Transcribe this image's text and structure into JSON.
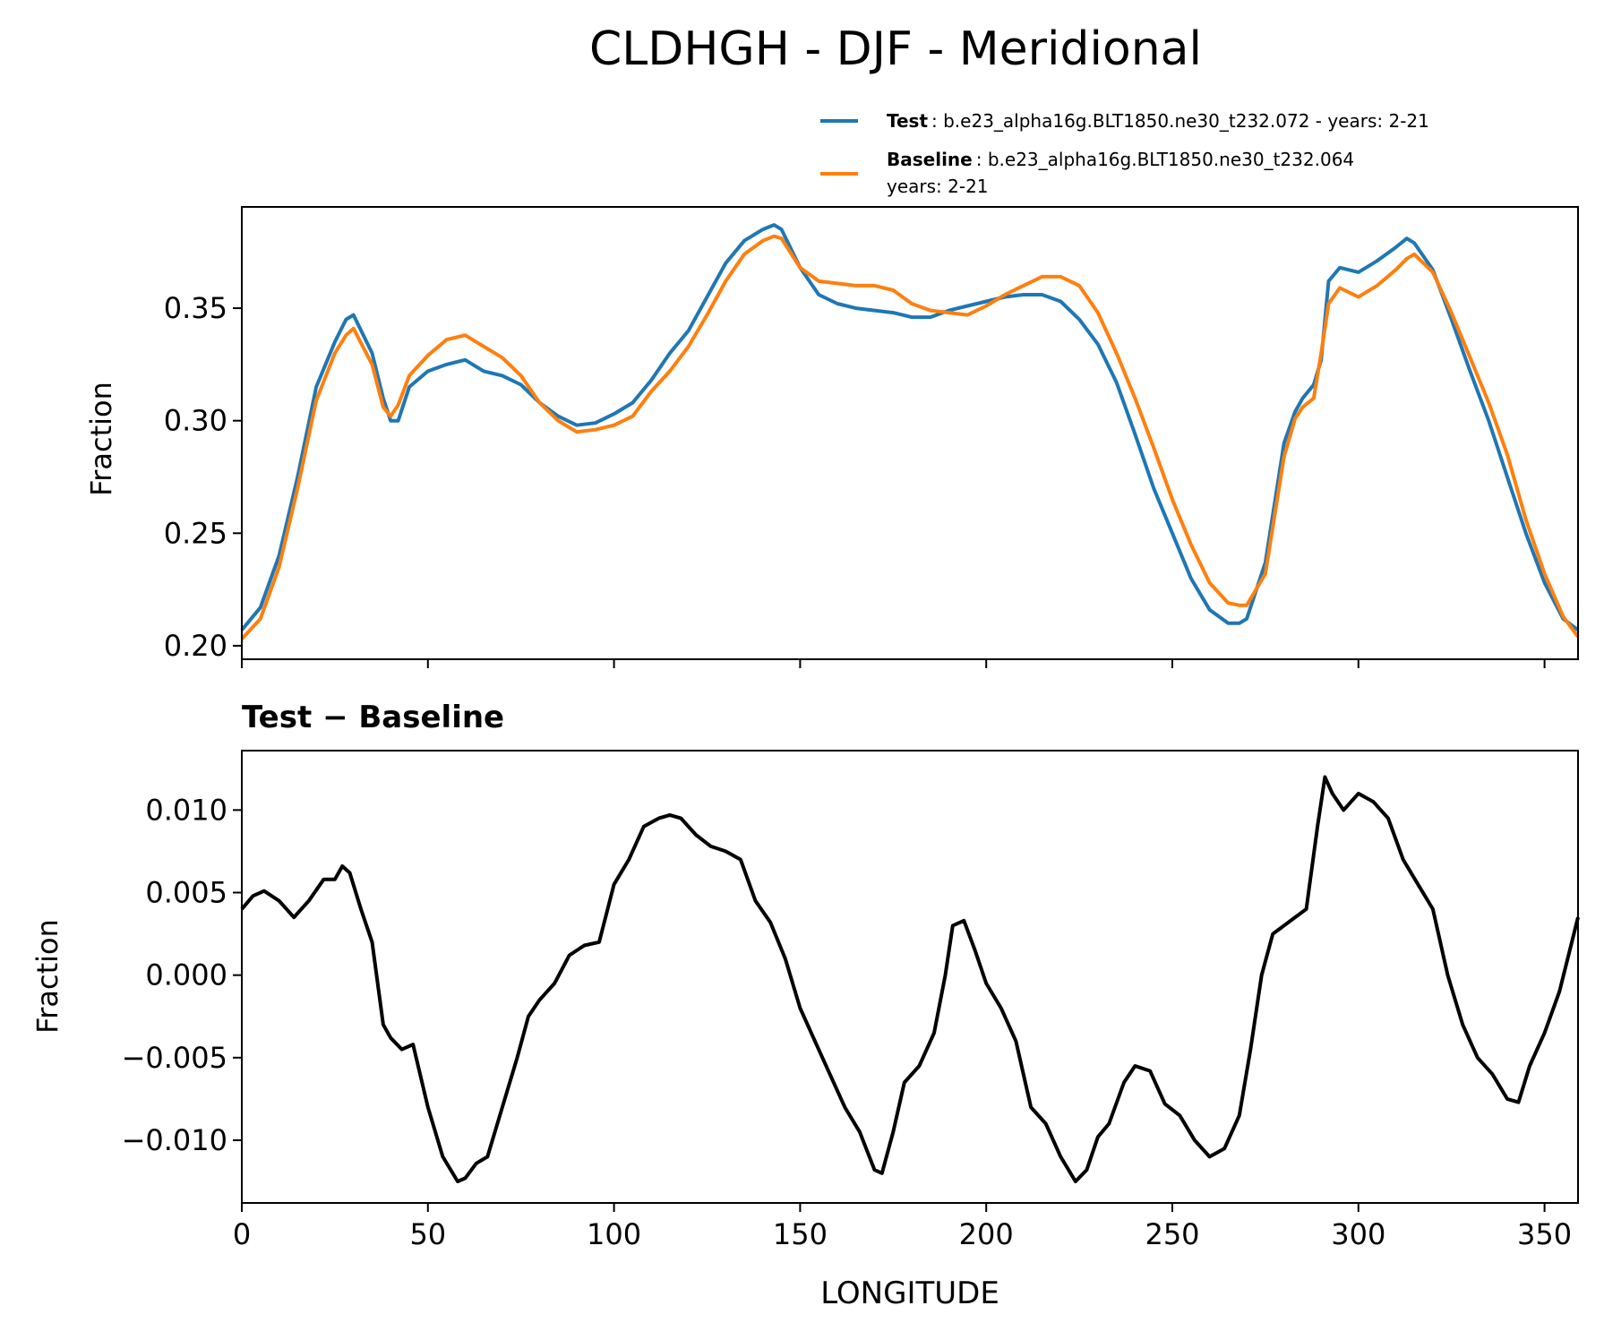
{
  "figure_title": "CLDHGH - DJF - Meridional",
  "legend": {
    "test_label": "Test",
    "test_text": ": b.e23_alpha16g.BLT1850.ne30_t232.072 - years: 2-21",
    "baseline_label": "Baseline",
    "baseline_text_line1": ": b.e23_alpha16g.BLT1850.ne30_t232.064",
    "baseline_text_line2": "years: 2-21"
  },
  "colors": {
    "test": "#1f77b4",
    "baseline": "#ff7f0e",
    "diff": "#000000"
  },
  "chart_data": [
    {
      "type": "line",
      "panel": "top",
      "ylabel": "Fraction",
      "xlim": [
        0,
        359
      ],
      "ylim": [
        0.194,
        0.395
      ],
      "xticks": [
        0,
        50,
        100,
        150,
        200,
        250,
        300,
        350
      ],
      "yticks": [
        0.2,
        0.25,
        0.3,
        0.35
      ],
      "ytick_labels": [
        "0.20",
        "0.25",
        "0.30",
        "0.35"
      ],
      "series": [
        {
          "name": "Test",
          "x": [
            0,
            5,
            10,
            15,
            20,
            25,
            28,
            30,
            35,
            38,
            40,
            42,
            45,
            50,
            55,
            60,
            65,
            70,
            75,
            80,
            85,
            90,
            95,
            100,
            105,
            110,
            115,
            120,
            125,
            130,
            135,
            140,
            143,
            145,
            150,
            155,
            160,
            165,
            170,
            175,
            180,
            185,
            190,
            195,
            200,
            205,
            210,
            215,
            220,
            225,
            230,
            235,
            240,
            245,
            250,
            255,
            260,
            265,
            268,
            270,
            275,
            280,
            283,
            285,
            288,
            290,
            292,
            295,
            300,
            305,
            310,
            313,
            315,
            320,
            325,
            330,
            335,
            340,
            345,
            350,
            355,
            359
          ],
          "values": [
            0.207,
            0.217,
            0.24,
            0.275,
            0.315,
            0.335,
            0.345,
            0.347,
            0.33,
            0.31,
            0.3,
            0.3,
            0.315,
            0.322,
            0.325,
            0.327,
            0.322,
            0.32,
            0.316,
            0.308,
            0.302,
            0.298,
            0.299,
            0.303,
            0.308,
            0.318,
            0.33,
            0.34,
            0.355,
            0.37,
            0.38,
            0.385,
            0.387,
            0.385,
            0.368,
            0.356,
            0.352,
            0.35,
            0.349,
            0.348,
            0.346,
            0.346,
            0.349,
            0.351,
            0.353,
            0.355,
            0.356,
            0.356,
            0.353,
            0.345,
            0.334,
            0.317,
            0.294,
            0.27,
            0.25,
            0.23,
            0.216,
            0.21,
            0.21,
            0.212,
            0.237,
            0.29,
            0.304,
            0.31,
            0.316,
            0.327,
            0.362,
            0.368,
            0.366,
            0.371,
            0.377,
            0.381,
            0.379,
            0.367,
            0.345,
            0.322,
            0.3,
            0.275,
            0.25,
            0.228,
            0.212,
            0.207
          ]
        },
        {
          "name": "Baseline",
          "x": [
            0,
            5,
            10,
            15,
            20,
            25,
            28,
            30,
            35,
            38,
            40,
            42,
            45,
            50,
            55,
            60,
            65,
            70,
            75,
            80,
            85,
            90,
            95,
            100,
            105,
            110,
            115,
            120,
            125,
            130,
            135,
            140,
            143,
            145,
            150,
            155,
            160,
            165,
            170,
            175,
            180,
            185,
            190,
            195,
            200,
            205,
            210,
            215,
            220,
            225,
            230,
            235,
            240,
            245,
            250,
            255,
            260,
            265,
            268,
            270,
            275,
            280,
            283,
            285,
            288,
            290,
            292,
            295,
            300,
            305,
            310,
            313,
            315,
            320,
            325,
            330,
            335,
            340,
            345,
            350,
            355,
            359
          ],
          "values": [
            0.203,
            0.212,
            0.235,
            0.27,
            0.309,
            0.33,
            0.338,
            0.341,
            0.325,
            0.306,
            0.302,
            0.307,
            0.32,
            0.329,
            0.336,
            0.338,
            0.333,
            0.328,
            0.32,
            0.308,
            0.3,
            0.295,
            0.296,
            0.298,
            0.302,
            0.313,
            0.322,
            0.333,
            0.347,
            0.362,
            0.374,
            0.38,
            0.382,
            0.381,
            0.368,
            0.362,
            0.361,
            0.36,
            0.36,
            0.358,
            0.352,
            0.349,
            0.348,
            0.347,
            0.351,
            0.356,
            0.36,
            0.364,
            0.364,
            0.36,
            0.348,
            0.33,
            0.31,
            0.288,
            0.265,
            0.245,
            0.228,
            0.219,
            0.218,
            0.218,
            0.232,
            0.284,
            0.301,
            0.306,
            0.31,
            0.33,
            0.352,
            0.359,
            0.355,
            0.36,
            0.367,
            0.372,
            0.374,
            0.366,
            0.348,
            0.328,
            0.308,
            0.285,
            0.256,
            0.232,
            0.213,
            0.204
          ]
        }
      ]
    },
    {
      "type": "line",
      "panel": "bottom",
      "title": "Test − Baseline",
      "xlabel": "LONGITUDE",
      "ylabel": "Fraction",
      "xlim": [
        0,
        359
      ],
      "ylim": [
        -0.0138,
        0.0136
      ],
      "xticks": [
        0,
        50,
        100,
        150,
        200,
        250,
        300,
        350
      ],
      "xtick_labels": [
        "0",
        "50",
        "100",
        "150",
        "200",
        "250",
        "300",
        "350"
      ],
      "yticks": [
        -0.01,
        -0.005,
        0.0,
        0.005,
        0.01
      ],
      "ytick_labels": [
        "−0.010",
        "−0.005",
        "0.000",
        "0.005",
        "0.010"
      ],
      "series": [
        {
          "name": "Test − Baseline",
          "x": [
            0,
            3,
            6,
            10,
            14,
            18,
            22,
            25,
            27,
            29,
            32,
            35,
            38,
            40,
            43,
            46,
            50,
            54,
            58,
            60,
            63,
            66,
            70,
            74,
            77,
            80,
            84,
            88,
            92,
            96,
            100,
            104,
            108,
            112,
            115,
            118,
            122,
            126,
            130,
            134,
            138,
            142,
            146,
            150,
            154,
            158,
            162,
            166,
            170,
            172,
            175,
            178,
            182,
            186,
            189,
            191,
            194,
            197,
            200,
            204,
            208,
            212,
            216,
            220,
            224,
            227,
            230,
            233,
            237,
            240,
            244,
            248,
            252,
            256,
            260,
            264,
            268,
            271,
            274,
            277,
            280,
            283,
            286,
            289,
            291,
            293,
            296,
            300,
            304,
            308,
            312,
            316,
            320,
            324,
            328,
            332,
            336,
            340,
            343,
            346,
            350,
            354,
            359
          ],
          "values": [
            0.004,
            0.0048,
            0.0051,
            0.0045,
            0.0035,
            0.0045,
            0.0058,
            0.0058,
            0.0066,
            0.0062,
            0.004,
            0.002,
            -0.003,
            -0.0038,
            -0.0045,
            -0.0042,
            -0.008,
            -0.011,
            -0.0125,
            -0.0123,
            -0.0114,
            -0.011,
            -0.008,
            -0.005,
            -0.0025,
            -0.0015,
            -0.0005,
            0.0012,
            0.0018,
            0.002,
            0.0055,
            0.007,
            0.009,
            0.0095,
            0.0097,
            0.0095,
            0.0085,
            0.0078,
            0.0075,
            0.007,
            0.0045,
            0.0032,
            0.001,
            -0.002,
            -0.004,
            -0.006,
            -0.008,
            -0.0095,
            -0.0118,
            -0.012,
            -0.0095,
            -0.0065,
            -0.0055,
            -0.0035,
            0.0,
            0.003,
            0.0033,
            0.0015,
            -0.0005,
            -0.002,
            -0.004,
            -0.008,
            -0.009,
            -0.011,
            -0.0125,
            -0.0118,
            -0.0098,
            -0.009,
            -0.0065,
            -0.0055,
            -0.0058,
            -0.0078,
            -0.0085,
            -0.01,
            -0.011,
            -0.0105,
            -0.0085,
            -0.0045,
            0.0,
            0.0025,
            0.003,
            0.0035,
            0.004,
            0.009,
            0.012,
            0.011,
            0.01,
            0.011,
            0.0105,
            0.0095,
            0.007,
            0.0055,
            0.004,
            0.0,
            -0.003,
            -0.005,
            -0.006,
            -0.0075,
            -0.0077,
            -0.0055,
            -0.0035,
            -0.001,
            0.0035
          ]
        }
      ]
    }
  ]
}
